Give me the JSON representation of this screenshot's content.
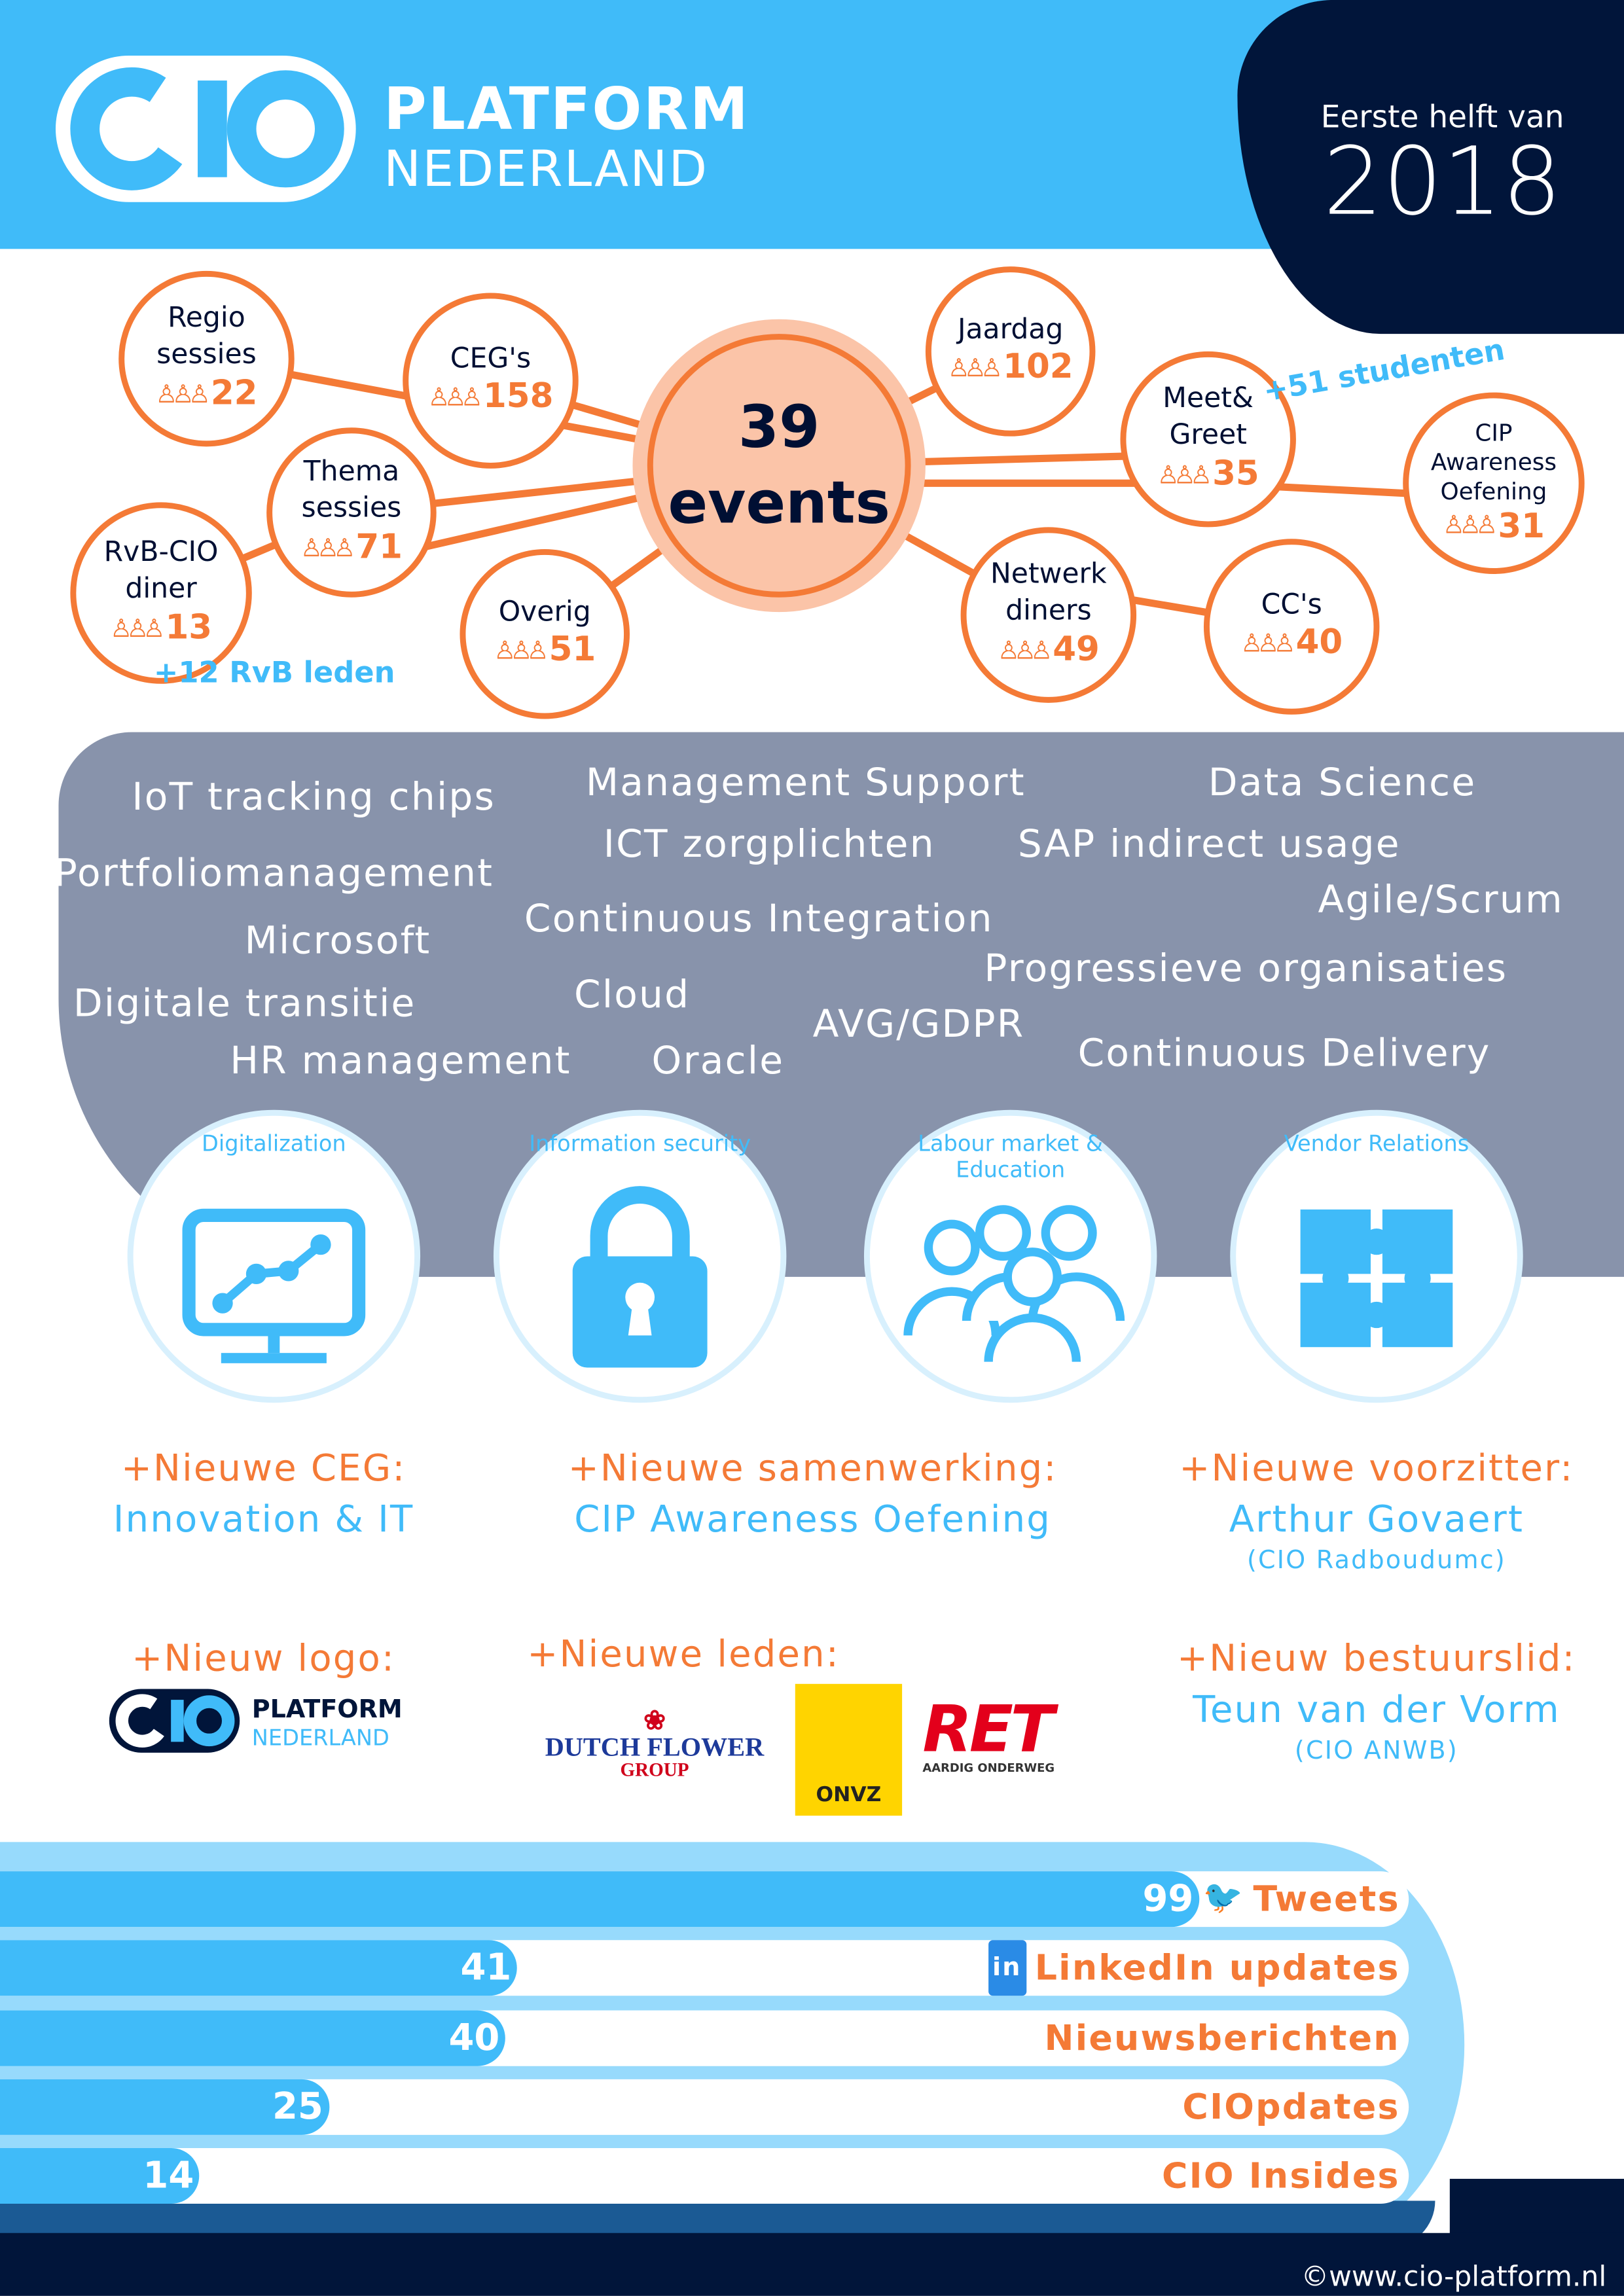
{
  "header": {
    "brand_line1": "PLATFORM",
    "brand_line2": "NEDERLAND",
    "logo_text": "CIO",
    "period_label": "Eerste helft van",
    "year": "2018"
  },
  "events": {
    "total_number": "39",
    "total_label": "events",
    "nodes": [
      {
        "label": "Regio sessies",
        "count": "22"
      },
      {
        "label": "CEG's",
        "count": "158"
      },
      {
        "label": "Thema sessies",
        "count": "71"
      },
      {
        "label": "RvB-CIO diner",
        "count": "13"
      },
      {
        "label": "Overig",
        "count": "51"
      },
      {
        "label": "Jaardag",
        "count": "102"
      },
      {
        "label": "Meet& Greet",
        "count": "35"
      },
      {
        "label": "CIP Awareness Oefening",
        "count": "31"
      },
      {
        "label": "Netwerk diners",
        "count": "49"
      },
      {
        "label": "CC's",
        "count": "40"
      }
    ],
    "note_rvb": "+12 RvB leden",
    "note_studenten": "+51 studenten",
    "people_icon": "people-group-icon"
  },
  "topics": [
    "IoT tracking chips",
    "Management Support",
    "Data Science",
    "ICT zorgplichten",
    "SAP indirect usage",
    "Portfoliomanagement",
    "Agile/Scrum",
    "Microsoft",
    "Continuous Integration",
    "Progressieve organisaties",
    "Digitale transitie",
    "Cloud",
    "AVG/GDPR",
    "HR management",
    "Oracle",
    "Continuous Delivery"
  ],
  "themes": [
    {
      "label": "Digitalization",
      "icon": "monitor-chart-icon"
    },
    {
      "label": "Information security",
      "icon": "padlock-icon"
    },
    {
      "label": "Labour market & Education",
      "icon": "people-icon"
    },
    {
      "label": "Vendor Relations",
      "icon": "puzzle-icon"
    }
  ],
  "news": [
    {
      "title": "+Nieuwe CEG:",
      "body": "Innovation & IT"
    },
    {
      "title": "+Nieuwe samenwerking:",
      "body": "CIP Awareness Oefening"
    },
    {
      "title": "+Nieuwe voorzitter:",
      "body": "Arthur Govaert",
      "sub": "(CIO Radboudumc)"
    },
    {
      "title": "+Nieuw logo:",
      "logo_brand1": "PLATFORM",
      "logo_brand2": "NEDERLAND",
      "logo_text": "CIO"
    },
    {
      "title": "+Nieuwe leden:",
      "members": [
        "DUTCH FLOWER",
        "GROUP",
        "ONVZ",
        "RET",
        "AARDIG ONDERWEG"
      ]
    },
    {
      "title": "+Nieuw bestuurslid:",
      "body": "Teun van der Vorm",
      "sub": "(CIO ANWB)"
    }
  ],
  "chart_data": {
    "type": "bar",
    "orientation": "horizontal",
    "categories": [
      "Tweets",
      "LinkedIn updates",
      "Nieuwsberichten",
      "CIOpdates",
      "CIO Insides"
    ],
    "values": [
      99,
      41,
      40,
      25,
      14
    ]
  },
  "footer": {
    "url": "©www.cio-platform.nl"
  },
  "colors": {
    "blue": "#40bbf9",
    "orange": "#f47a36",
    "navy": "#01153a",
    "gray": "#8893ab"
  }
}
